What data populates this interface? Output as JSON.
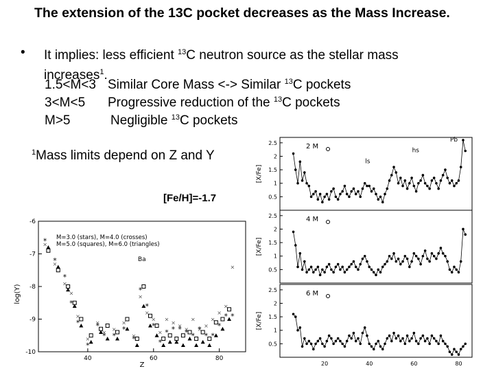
{
  "title": "The extension of the  13C pocket decreases as the  Mass Increase.",
  "bullet": {
    "marker": "•",
    "text_a": "It implies: less efficient ",
    "sup1": "13",
    "text_b": "C neutron source as the stellar mass",
    "text_c": "increases",
    "sup2": "1",
    "text_d": "."
  },
  "rows": [
    {
      "range": "1.5<M<3",
      "desc_a": "Similar Core Mass <-> Similar ",
      "sup": "13",
      "desc_b": "C pockets"
    },
    {
      "range": "3<M<5",
      "desc_a": "Progressive reduction of the ",
      "sup": "13",
      "desc_b": "C pockets"
    },
    {
      "range": "M>5",
      "desc_a": "Negligible ",
      "sup": "13",
      "desc_b": "C pockets"
    }
  ],
  "footnote": {
    "sup": "1",
    "text": "Mass limits depend on Z and Y"
  },
  "fe_h_label": "[Fe/H]=-1.7",
  "chart_data": [
    {
      "type": "scatter",
      "ylabel": "log(Y)",
      "xlabel": "Z",
      "legend": [
        "M=3.0 (stars), M=4.0 (crosses)",
        "M=5.0 (squares), M=6.0 (triangles)"
      ],
      "annotation": "Ba",
      "xticks": [
        "40",
        "60",
        "80"
      ],
      "yticks": [
        "-6",
        "-7",
        "-8",
        "-9",
        "-10"
      ],
      "xlim": [
        25,
        88
      ],
      "ylim": [
        -10,
        -6
      ],
      "series": [
        {
          "name": "M=3.0 (stars)",
          "marker": "*",
          "x": [
            27,
            30,
            33,
            35,
            37,
            40,
            43,
            45,
            48,
            51,
            54,
            56,
            58,
            60,
            62,
            64,
            66,
            68,
            70,
            72,
            74,
            76,
            78,
            80,
            82,
            84
          ],
          "y": [
            -6.6,
            -7.2,
            -7.7,
            -8.5,
            -9.1,
            -9.8,
            -9.2,
            -9.5,
            -9.5,
            -9.3,
            -9.6,
            -8.1,
            -8.6,
            -9.2,
            -9.7,
            -9.4,
            -9.3,
            -9.3,
            -9.4,
            -9.5,
            -9.3,
            -9.5,
            -9.5,
            -9.2,
            -8.9,
            -8.9
          ]
        },
        {
          "name": "M=4.0 (crosses)",
          "marker": "x",
          "x": [
            27,
            30,
            33,
            35,
            37,
            40,
            43,
            45,
            48,
            51,
            54,
            56,
            58,
            60,
            62,
            64,
            66,
            68,
            70,
            72,
            74,
            76,
            78,
            80,
            82,
            84
          ],
          "y": [
            -6.7,
            -7.3,
            -7.9,
            -8.2,
            -8.9,
            -9.6,
            -9.1,
            -9.4,
            -9.3,
            -9.1,
            -9.5,
            -8.3,
            -8.8,
            -9.0,
            -9.4,
            -9.0,
            -9.1,
            -9.2,
            -9.3,
            -9.0,
            -9.3,
            -9.2,
            -9.0,
            -8.8,
            -8.6,
            -7.4
          ]
        },
        {
          "name": "M=5.0 (squares)",
          "marker": "square",
          "x": [
            28,
            31,
            34,
            36,
            38,
            41,
            44,
            46,
            49,
            52,
            55,
            57,
            59,
            61,
            63,
            65,
            67,
            69,
            71,
            73,
            75,
            77,
            79,
            81,
            83
          ],
          "y": [
            -6.9,
            -7.5,
            -8.0,
            -8.5,
            -9.0,
            -9.5,
            -9.3,
            -9.2,
            -9.4,
            -9.0,
            -9.6,
            -8.0,
            -8.9,
            -9.2,
            -9.6,
            -9.5,
            -9.6,
            -9.5,
            -9.4,
            -9.6,
            -9.4,
            -9.6,
            -9.1,
            -9.0,
            -8.7
          ]
        },
        {
          "name": "M=6.0 (triangles)",
          "marker": "triangle",
          "x": [
            28,
            31,
            34,
            36,
            38,
            41,
            44,
            46,
            49,
            52,
            55,
            57,
            59,
            61,
            63,
            65,
            67,
            69,
            71,
            73,
            75,
            77,
            79,
            81,
            83
          ],
          "y": [
            -6.8,
            -7.4,
            -8.1,
            -8.6,
            -9.2,
            -9.7,
            -9.4,
            -9.6,
            -9.6,
            -9.3,
            -9.8,
            -8.6,
            -9.2,
            -9.5,
            -9.8,
            -9.7,
            -9.7,
            -9.8,
            -9.6,
            -9.8,
            -9.7,
            -9.8,
            -9.5,
            -9.3,
            -9.0
          ]
        }
      ]
    },
    {
      "type": "line",
      "ylabel": "[X/Fe]",
      "annotation": "2  M",
      "labels": [
        "ls",
        "hs",
        "Pb"
      ],
      "yticks": [
        "0.5",
        "1",
        "1.5",
        "2",
        "2.5"
      ],
      "xlim": [
        0,
        86
      ],
      "ylim": [
        0,
        2.7
      ],
      "series": [
        {
          "name": "",
          "x": [
            6,
            7,
            8,
            9,
            10,
            11,
            12,
            13,
            14,
            15,
            16,
            17,
            18,
            19,
            20,
            21,
            22,
            23,
            24,
            25,
            26,
            27,
            28,
            29,
            30,
            31,
            32,
            33,
            34,
            35,
            36,
            37,
            38,
            39,
            40,
            41,
            42,
            43,
            44,
            45,
            46,
            47,
            48,
            49,
            50,
            51,
            52,
            53,
            54,
            55,
            56,
            57,
            58,
            59,
            60,
            61,
            62,
            63,
            64,
            65,
            66,
            67,
            68,
            69,
            70,
            71,
            72,
            73,
            74,
            75,
            76,
            77,
            78,
            79,
            80,
            81,
            82,
            83
          ],
          "y": [
            2.1,
            1.5,
            1.0,
            1.8,
            1.1,
            1.4,
            1.0,
            0.9,
            0.5,
            0.6,
            0.7,
            0.4,
            0.6,
            0.3,
            0.5,
            0.6,
            0.4,
            0.7,
            0.8,
            0.5,
            0.4,
            0.6,
            0.7,
            0.9,
            0.6,
            0.5,
            0.7,
            0.8,
            0.6,
            0.7,
            0.5,
            0.8,
            1.0,
            0.9,
            0.9,
            0.7,
            0.8,
            0.6,
            0.4,
            0.5,
            0.3,
            0.6,
            0.8,
            1.1,
            1.3,
            1.6,
            1.4,
            1.0,
            1.2,
            0.9,
            1.1,
            0.8,
            1.0,
            1.2,
            0.9,
            0.7,
            1.0,
            1.1,
            1.3,
            1.0,
            0.9,
            0.8,
            1.1,
            1.2,
            1.0,
            0.8,
            1.1,
            1.3,
            1.5,
            1.2,
            1.0,
            1.1,
            0.9,
            1.0,
            1.1,
            1.6,
            2.6,
            2.2
          ]
        }
      ]
    },
    {
      "type": "line",
      "ylabel": "[X/Fe]",
      "annotation": "4  M",
      "yticks": [
        "0.5",
        "1",
        "1.5",
        "2",
        "2.5"
      ],
      "xlim": [
        0,
        86
      ],
      "ylim": [
        0,
        2.7
      ],
      "series": [
        {
          "name": "",
          "x": [
            6,
            7,
            8,
            9,
            10,
            11,
            12,
            13,
            14,
            15,
            16,
            17,
            18,
            19,
            20,
            21,
            22,
            23,
            24,
            25,
            26,
            27,
            28,
            29,
            30,
            31,
            32,
            33,
            34,
            35,
            36,
            37,
            38,
            39,
            40,
            41,
            42,
            43,
            44,
            45,
            46,
            47,
            48,
            49,
            50,
            51,
            52,
            53,
            54,
            55,
            56,
            57,
            58,
            59,
            60,
            61,
            62,
            63,
            64,
            65,
            66,
            67,
            68,
            69,
            70,
            71,
            72,
            73,
            74,
            75,
            76,
            77,
            78,
            79,
            80,
            81,
            82,
            83
          ],
          "y": [
            1.9,
            1.4,
            0.6,
            1.1,
            0.5,
            0.8,
            0.4,
            0.5,
            0.6,
            0.4,
            0.5,
            0.6,
            0.3,
            0.5,
            0.4,
            0.6,
            0.7,
            0.5,
            0.4,
            0.6,
            0.7,
            0.5,
            0.6,
            0.4,
            0.5,
            0.6,
            0.7,
            0.8,
            0.6,
            0.5,
            0.7,
            0.9,
            1.0,
            0.8,
            0.6,
            0.5,
            0.4,
            0.3,
            0.5,
            0.4,
            0.6,
            0.7,
            0.8,
            1.0,
            0.9,
            1.1,
            0.8,
            0.9,
            0.7,
            0.8,
            1.0,
            0.9,
            0.6,
            0.8,
            1.1,
            1.0,
            0.9,
            0.7,
            1.0,
            1.2,
            0.9,
            0.8,
            1.1,
            1.0,
            0.9,
            1.1,
            1.3,
            1.1,
            1.0,
            0.8,
            0.5,
            0.4,
            0.6,
            0.5,
            0.4,
            0.8,
            2.0,
            1.8
          ]
        }
      ]
    },
    {
      "type": "line",
      "ylabel": "[X/Fe]",
      "xlabel": "Z",
      "annotation": "6  M",
      "yticks": [
        "0.5",
        "1",
        "1.5",
        "2",
        "2.5"
      ],
      "xticks": [
        "20",
        "40",
        "60",
        "80"
      ],
      "xlim": [
        0,
        86
      ],
      "ylim": [
        0,
        2.7
      ],
      "series": [
        {
          "name": "",
          "x": [
            6,
            7,
            8,
            9,
            10,
            11,
            12,
            13,
            14,
            15,
            16,
            17,
            18,
            19,
            20,
            21,
            22,
            23,
            24,
            25,
            26,
            27,
            28,
            29,
            30,
            31,
            32,
            33,
            34,
            35,
            36,
            37,
            38,
            39,
            40,
            41,
            42,
            43,
            44,
            45,
            46,
            47,
            48,
            49,
            50,
            51,
            52,
            53,
            54,
            55,
            56,
            57,
            58,
            59,
            60,
            61,
            62,
            63,
            64,
            65,
            66,
            67,
            68,
            69,
            70,
            71,
            72,
            73,
            74,
            75,
            76,
            77,
            78,
            79,
            80,
            81,
            82,
            83
          ],
          "y": [
            1.6,
            1.5,
            1.0,
            1.1,
            0.4,
            0.7,
            0.5,
            0.6,
            0.5,
            0.3,
            0.5,
            0.6,
            0.7,
            0.5,
            0.4,
            0.6,
            0.8,
            0.7,
            0.5,
            0.6,
            0.7,
            0.6,
            0.5,
            0.4,
            0.6,
            0.8,
            0.7,
            0.9,
            0.6,
            0.7,
            0.5,
            0.9,
            1.1,
            0.8,
            0.5,
            0.4,
            0.3,
            0.5,
            0.6,
            0.4,
            0.3,
            0.5,
            0.7,
            0.8,
            0.6,
            0.9,
            0.7,
            0.8,
            0.6,
            0.7,
            0.5,
            0.8,
            0.6,
            0.7,
            0.9,
            0.6,
            0.5,
            0.7,
            0.8,
            0.6,
            0.7,
            0.5,
            0.8,
            0.7,
            0.6,
            0.5,
            0.8,
            0.6,
            0.5,
            0.4,
            0.2,
            0.1,
            0.3,
            0.2,
            0.1,
            0.3,
            0.4,
            0.5
          ]
        }
      ]
    }
  ]
}
